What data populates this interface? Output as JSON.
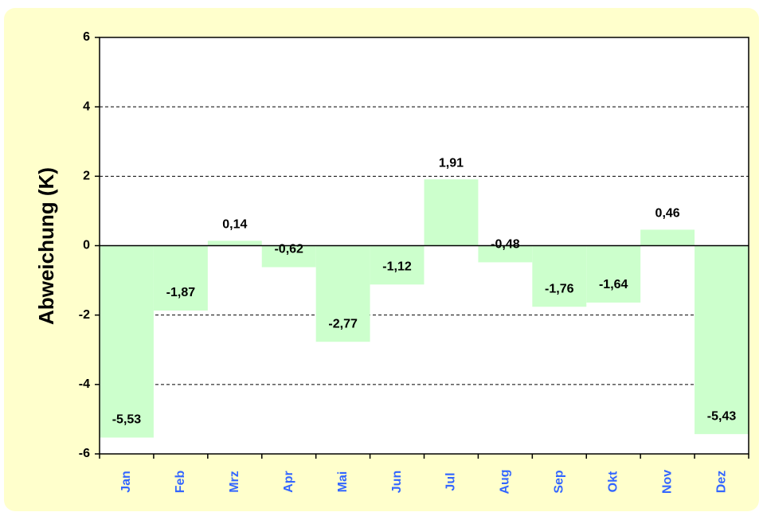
{
  "chart_data": {
    "type": "bar",
    "y_label": "Abweichung (K)",
    "categories": [
      "Jan",
      "Feb",
      "Mrz",
      "Apr",
      "Mai",
      "Jun",
      "Jul",
      "Aug",
      "Sep",
      "Okt",
      "Nov",
      "Dez"
    ],
    "values": [
      -5.53,
      -1.87,
      0.14,
      -0.62,
      -2.77,
      -1.12,
      1.91,
      -0.48,
      -1.76,
      -1.64,
      0.46,
      -5.43
    ],
    "value_labels": [
      "-5,53",
      "-1,87",
      "0,14",
      "-0,62",
      "-2,77",
      "-1,12",
      "1,91",
      "-0,48",
      "-1,76",
      "-1,64",
      "0,46",
      "-5,43"
    ],
    "color": "#ccffcc",
    "category_color": "#3366ff",
    "ylim": [
      -6,
      6
    ],
    "yticks": [
      -6,
      -4,
      -2,
      0,
      2,
      4,
      6
    ],
    "grid": true
  }
}
